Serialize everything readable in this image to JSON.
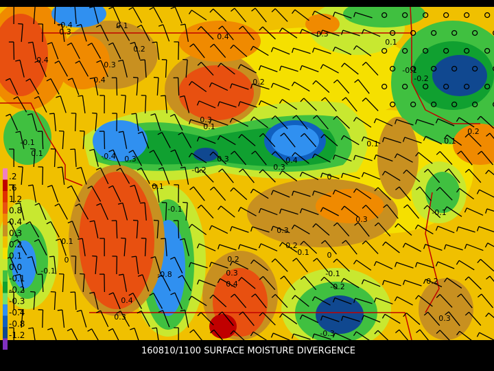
{
  "caption": "160810/1100 SURFACE MOISTURE DIVERGENCE",
  "legend": [
    {
      "label": ".2",
      "color": "#f080c0"
    },
    {
      "label": ".6",
      "color": "#c00000"
    },
    {
      "label": "1.2",
      "color": "#e03000"
    },
    {
      "label": "0.8",
      "color": "#e85010"
    },
    {
      "label": "0.4",
      "color": "#f08a00"
    },
    {
      "label": "0.3",
      "color": "#c89020"
    },
    {
      "label": "0.2",
      "color": "#f0c000"
    },
    {
      "label": "0.1",
      "color": "#f5e000"
    },
    {
      "label": "0.0",
      "color": "#c8e830"
    },
    {
      "label": "-0.1",
      "color": "#40c040"
    },
    {
      "label": "-0.2",
      "color": "#10a030"
    },
    {
      "label": "-0.3",
      "color": "#70e070"
    },
    {
      "label": "-0.4",
      "color": "#3090f0"
    },
    {
      "label": "-0.8",
      "color": "#1060c0"
    },
    {
      "label": "-1.2",
      "color": "#104890"
    },
    {
      "label": "-1.6",
      "color": "#8030c0"
    }
  ],
  "contour_labels": [
    "-0.4",
    "0.3",
    "0.1",
    "0.2",
    "0.4",
    "0.3",
    "0.1",
    "0.4",
    "0.3",
    "0.4",
    "0.2",
    "-0.1",
    "-0.2",
    "0.2",
    "0.1",
    "0.1",
    "0.3",
    "0.1",
    "0.3",
    "-0.2",
    "0.3",
    "0.4",
    "0",
    "-0.4",
    "0.3",
    "0.1",
    "-0.1",
    "0.3",
    "0.3",
    "0.2",
    "0.1",
    "0",
    "0.1",
    "0",
    "-0.8",
    "0.2",
    "0.3",
    "0.4",
    "-0.1",
    "-0.2",
    "0.4",
    "0.3",
    "-0.3",
    "0.2",
    "0.3",
    "-0.1",
    "0.1",
    "-0.1",
    "-0.1"
  ]
}
